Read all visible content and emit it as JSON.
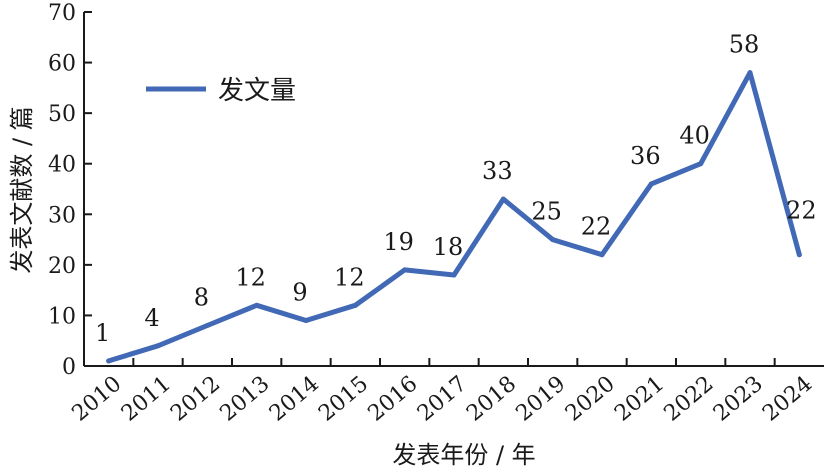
{
  "chart_data": {
    "type": "line",
    "x": [
      "2010",
      "2011",
      "2012",
      "2013",
      "2014",
      "2015",
      "2016",
      "2017",
      "2018",
      "2019",
      "2020",
      "2021",
      "2022",
      "2023",
      "2024"
    ],
    "series": [
      {
        "name": "发文量",
        "values": [
          1,
          4,
          8,
          12,
          9,
          12,
          19,
          18,
          33,
          25,
          22,
          36,
          40,
          58,
          22
        ],
        "color": "#4169b5"
      }
    ],
    "xlabel": "发表年份 / 年",
    "ylabel": "发表文献数 / 篇",
    "ylim": [
      0,
      70
    ],
    "yticks": [
      0,
      10,
      20,
      30,
      40,
      50,
      60,
      70
    ],
    "data_labels": true,
    "grid": false,
    "legend_position": "top-left"
  }
}
